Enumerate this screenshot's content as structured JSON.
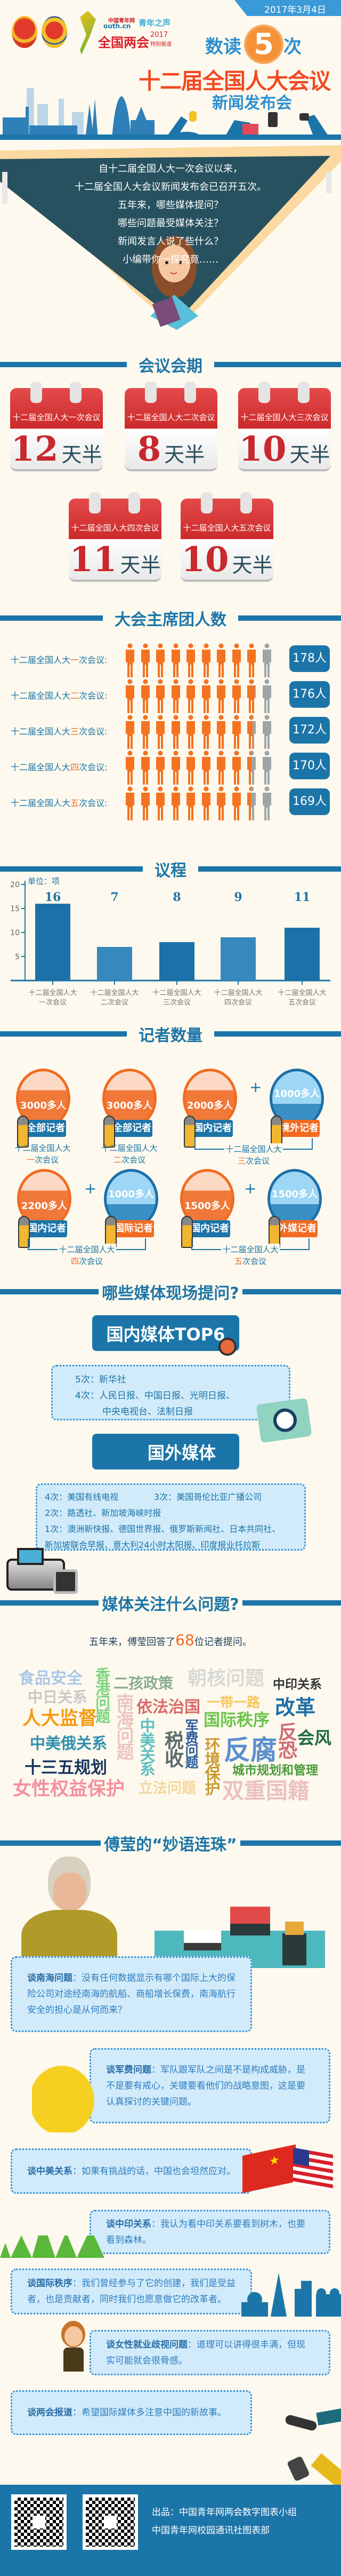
{
  "header": {
    "date": "2017年3月4日",
    "logo": {
      "site": "中国青年网",
      "domain": "outh.cn",
      "column": "青年之声",
      "event": "全国两会",
      "year": "2017",
      "sub": "特别报道"
    },
    "title_pre": "数读",
    "title_num": "5",
    "title_post": "次",
    "title_main": "十二届全国人大会议",
    "title_sub": "新闻发布会"
  },
  "intro": {
    "lines": [
      "自十二届全国人大一次会议以来，",
      "十二届全国人大会议新闻发布会已召开五次。",
      "五年来，哪些媒体提问？",
      "哪些问题最受媒体关注？",
      "新闻发言人说了些什么？",
      "小编带你一探究竟……"
    ]
  },
  "duration": {
    "heading": "会议会期",
    "unit": "天半",
    "items": [
      {
        "session": "十二届全国人大一次会议",
        "days": "12"
      },
      {
        "session": "十二届全国人大二次会议",
        "days": "8"
      },
      {
        "session": "十二届全国人大三次会议",
        "days": "10"
      },
      {
        "session": "十二届全国人大四次会议",
        "days": "11"
      },
      {
        "session": "十二届全国人大五次会议",
        "days": "10"
      }
    ]
  },
  "presidium": {
    "heading": "大会主席团人数",
    "colors": {
      "filled": "#f47321",
      "empty": "#9ea5a8"
    },
    "rows": [
      {
        "pre": "十二届全国人大",
        "ord": "一",
        "post": "次会议:",
        "value": 178,
        "label": "178人"
      },
      {
        "pre": "十二届全国人大",
        "ord": "二",
        "post": "次会议:",
        "value": 176,
        "label": "176人"
      },
      {
        "pre": "十二届全国人大",
        "ord": "三",
        "post": "次会议:",
        "value": 172,
        "label": "172人"
      },
      {
        "pre": "十二届全国人大",
        "ord": "四",
        "post": "次会议:",
        "value": 170,
        "label": "170人"
      },
      {
        "pre": "十二届全国人大",
        "ord": "五",
        "post": "次会议:",
        "value": 169,
        "label": "169人"
      }
    ]
  },
  "chart_data": {
    "type": "bar",
    "title": "议程",
    "ylabel": "单位：项",
    "ylim": [
      0,
      20
    ],
    "yticks": [
      5,
      10,
      15,
      20
    ],
    "categories": [
      [
        "十二届全国人大",
        "一次会议"
      ],
      [
        "十二届全国人大",
        "二次会议"
      ],
      [
        "十二届全国人大",
        "三次会议"
      ],
      [
        "十二届全国人大",
        "四次会议"
      ],
      [
        "十二届全国人大",
        "五次会议"
      ]
    ],
    "values": [
      16,
      7,
      8,
      9,
      11
    ],
    "colors": [
      "#1c72a8",
      "#3589bd",
      "#1c72a8",
      "#3589bd",
      "#1c72a8"
    ],
    "grid": false
  },
  "reporters": {
    "heading": "记者数量",
    "groups": [
      {
        "pre": "十二届全国人大",
        "ord": "一",
        "post": "次会议",
        "items": [
          {
            "count": "3000多人",
            "tag": "全部记者",
            "kind": "domestic"
          }
        ]
      },
      {
        "pre": "十二届全国人大",
        "ord": "二",
        "post": "次会议",
        "items": [
          {
            "count": "3000多人",
            "tag": "全部记者",
            "kind": "domestic"
          }
        ]
      },
      {
        "pre": "十二届全国人大",
        "ord": "三",
        "post": "次会议",
        "items": [
          {
            "count": "2000多人",
            "tag": "国内记者",
            "kind": "domestic"
          },
          {
            "count": "1000多人",
            "tag": "境外记者",
            "kind": "foreign"
          }
        ]
      },
      {
        "pre": "十二届全国人大",
        "ord": "四",
        "post": "次会议",
        "items": [
          {
            "count": "2200多人",
            "tag": "国内记者",
            "kind": "domestic"
          },
          {
            "count": "1000多人",
            "tag": "国际记者",
            "kind": "foreign"
          }
        ]
      },
      {
        "pre": "十二届全国人大",
        "ord": "五",
        "post": "次会议",
        "items": [
          {
            "count": "1500多人",
            "tag": "国内记者",
            "kind": "domestic"
          },
          {
            "count": "1500多人",
            "tag": "外媒记者",
            "kind": "foreign"
          }
        ]
      }
    ],
    "plus": "+"
  },
  "media": {
    "heading": "哪些媒体现场提问?",
    "domestic_title": "国内媒体TOP6",
    "domestic": [
      {
        "times": "5次：",
        "names": "新华社"
      },
      {
        "times": "4次：",
        "names": "人民日报、中国日报、光明日报、"
      },
      {
        "times": "",
        "names": "中央电视台、法制日报"
      }
    ],
    "foreign_title": "国外媒体",
    "foreign": [
      {
        "times": "4次：",
        "names": "美国有线电视"
      },
      {
        "times": "3次：",
        "names": "美国哥伦比亚广播公司"
      },
      {
        "times": "2次：",
        "names": "路透社、新加坡海峡时报"
      },
      {
        "times": "1次：",
        "names": "澳洲新快报、德国世界报、俄罗斯新闻社、日本共同社、"
      },
      {
        "times": "",
        "names": "新加坡联合早报、意大利24小时太阳报、印度报业托拉斯"
      }
    ]
  },
  "topics": {
    "heading": "媒体关注什么问题?",
    "summary_pre": "五年来，傅莹回答了",
    "summary_num": "68",
    "summary_post": "位记者提问。",
    "words": [
      {
        "text": "食品安全",
        "color": "#a9c8e8"
      },
      {
        "text": "香港问题",
        "color": "#7fd47f"
      },
      {
        "text": "二孩政策",
        "color": "#8aae8e"
      },
      {
        "text": "朝核问题",
        "color": "#d8d8d4"
      },
      {
        "text": "中印关系",
        "color": "#333333"
      },
      {
        "text": "中日关系",
        "color": "#c8c8c8"
      },
      {
        "text": "南海问题",
        "color": "#ecc4c0"
      },
      {
        "text": "依法治国",
        "color": "#d86a6a"
      },
      {
        "text": "一带一路",
        "color": "#f7c65a"
      },
      {
        "text": "改革",
        "color": "#1c6fa8"
      },
      {
        "text": "人大监督",
        "color": "#f59a10"
      },
      {
        "text": "中美关系",
        "color": "#5cbfc0"
      },
      {
        "text": "军费问题",
        "color": "#2f5f9e"
      },
      {
        "text": "国际秩序",
        "color": "#6ac44a"
      },
      {
        "text": "税收",
        "color": "#5b6b6b"
      },
      {
        "text": "反恐",
        "color": "#d06a72"
      },
      {
        "text": "会风",
        "color": "#1f6b3e"
      },
      {
        "text": "中美俄关系",
        "color": "#2f8fae"
      },
      {
        "text": "环境保护",
        "color": "#c89a30"
      },
      {
        "text": "反腐",
        "color": "#5a8fd0"
      },
      {
        "text": "十三五规划",
        "color": "#14325e"
      },
      {
        "text": "城市规划和管理",
        "color": "#4a9a3a"
      },
      {
        "text": "女性权益保护",
        "color": "#f4909c"
      },
      {
        "text": "立法问题",
        "color": "#f6d69a"
      },
      {
        "text": "双重国籍",
        "color": "#ecc0c0"
      }
    ]
  },
  "quotes": {
    "heading": "傅莹的“妙语连珠”",
    "items": [
      {
        "topic": "谈南海问题",
        "text": "：没有任何数据显示有哪个国际上大的保险公司对途经南海的航船、商船增长保费，南海航行安全的担心是从何而来？"
      },
      {
        "topic": "谈军费问题",
        "text": "：军队跟军队之间是不是构成威胁，是不是要有戒心，关键要看他们的战略意图，这是要认真探讨的关键问题。"
      },
      {
        "topic": "谈中美关系",
        "text": "：如果有挑战的话，中国也会坦然应对。"
      },
      {
        "topic": "谈中印关系",
        "text": "：我认为看中印关系要看到树木，也要看到森林。"
      },
      {
        "topic": "谈国际秩序",
        "text": "：我们曾经参与了它的创建，我们是受益者，也是贡献者，同时我们也愿意做它的改革者。"
      },
      {
        "topic": "谈女性就业歧视问题",
        "text": "：道理可以讲得很丰满，但现实可能就会很骨感。"
      },
      {
        "topic": "谈两会报道",
        "text": "：希望国际媒体多注意中国的新故事。"
      }
    ]
  },
  "footer": {
    "credit_1": "出品：中国青年网两会数字图表小组",
    "credit_2": "中国青年网校园通讯社图表部"
  }
}
